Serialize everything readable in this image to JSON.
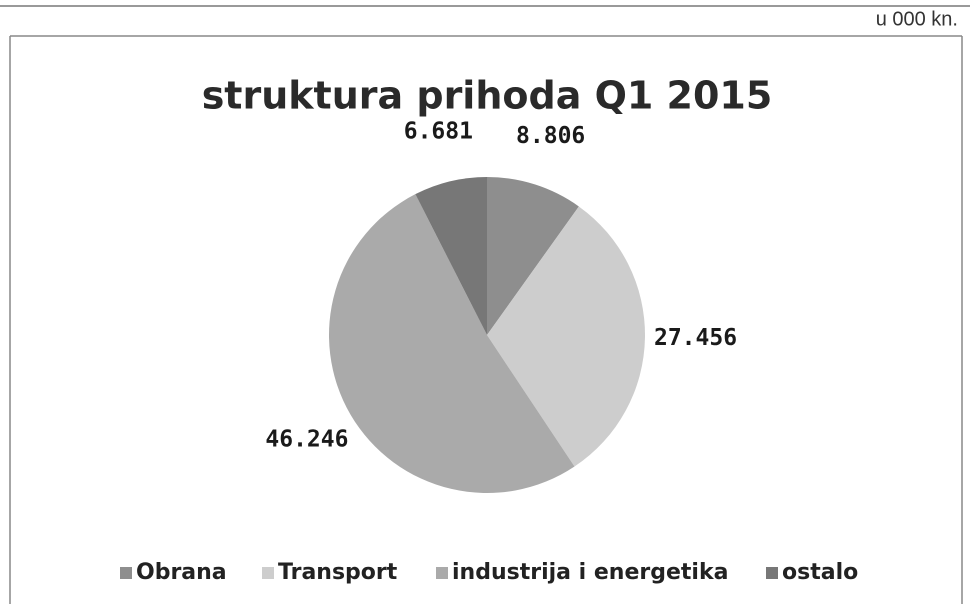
{
  "chart_data": {
    "type": "pie",
    "title": "struktura prihoda Q1 2015",
    "unit_note": "u 000 kn.",
    "categories": [
      "Obrana",
      "Transport",
      "industrija i energetika",
      "ostalo"
    ],
    "values": [
      8806,
      27456,
      46246,
      6681
    ],
    "value_labels": [
      "8.806",
      "27.456",
      "46.246",
      "6.681"
    ],
    "colors": [
      "#8e8e8e",
      "#cdcdcd",
      "#aaaaaa",
      "#777777"
    ],
    "legend": "bottom"
  }
}
